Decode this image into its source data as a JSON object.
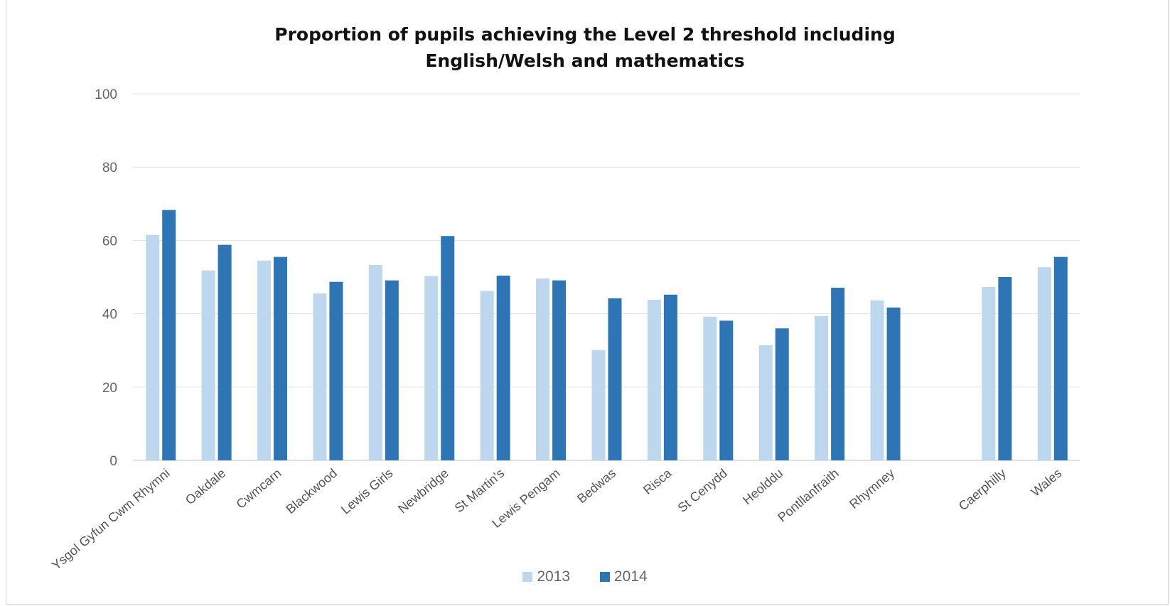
{
  "chart_data": {
    "type": "bar",
    "title": [
      "Proportion of pupils achieving the Level 2 threshold including",
      "English/Welsh and mathematics"
    ],
    "xlabel": "",
    "ylabel": "",
    "ylim": [
      0,
      100
    ],
    "yticks": [
      0,
      20,
      40,
      60,
      80,
      100
    ],
    "grid": true,
    "legend_position": "bottom",
    "categories": [
      "Ysgol Gyfun Cwm Rhymni",
      "Oakdale",
      "Cwmcarn",
      "Blackwood",
      "Lewis Girls",
      "Newbridge",
      "St Martin's",
      "Lewis Pengam",
      "Bedwas",
      "Risca",
      "St Cenydd",
      "Heolddu",
      "Pontllanfraith",
      "Rhymney",
      "",
      "Caerphilly",
      "Wales"
    ],
    "series": [
      {
        "name": "2013",
        "color": "#bdd7ee",
        "values": [
          61.5,
          51.8,
          54.5,
          45.5,
          53.3,
          50.3,
          46.2,
          49.6,
          30.1,
          43.8,
          39.2,
          31.4,
          39.4,
          43.6,
          null,
          47.3,
          52.7
        ]
      },
      {
        "name": "2014",
        "color": "#2e75b6",
        "values": [
          68.3,
          58.8,
          55.5,
          48.7,
          49.1,
          61.2,
          50.4,
          49.1,
          44.2,
          45.2,
          38.1,
          36.0,
          47.1,
          41.7,
          null,
          50.0,
          55.5
        ]
      }
    ]
  }
}
